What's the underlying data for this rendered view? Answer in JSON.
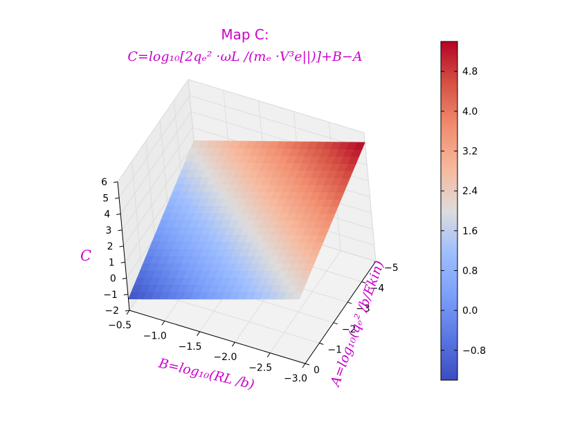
{
  "chart_data": {
    "type": "surface3d",
    "title": "Map C:",
    "subtitle": "C=log₁₀[2qₑ² ·ωL /(mₑ ·V³e||)]+B−A",
    "xlabel": "B=log₁₀(RL /b)",
    "ylabel": "A=log₁₀(qₑ² /b/Ekin)",
    "zlabel": "C",
    "x_range": [
      -0.5,
      -3.0
    ],
    "y_range": [
      0,
      -5
    ],
    "z_range": [
      -2,
      6
    ],
    "x_ticks": [
      "−0.5",
      "−1.0",
      "−1.5",
      "−2.0",
      "−2.5",
      "−3.0"
    ],
    "y_ticks": [
      "0",
      "−1",
      "−2",
      "−3",
      "−4",
      "−5"
    ],
    "z_ticks": [
      "−2",
      "−1",
      "0",
      "1",
      "2",
      "3",
      "4",
      "5",
      "6"
    ],
    "surface_corners": {
      "B_-0.5_A_0": -1.3,
      "B_-0.5_A_-5": 2.2,
      "B_-3.0_A_0": 2.0,
      "B_-3.0_A_-5": 5.4
    },
    "grid": true,
    "colorbar": {
      "colormap": "coolwarm",
      "min": -1.4,
      "max": 5.4,
      "ticks": [
        "−0.8",
        "0.0",
        "0.8",
        "1.6",
        "2.4",
        "3.2",
        "4.0",
        "4.8"
      ],
      "tick_values": [
        -0.8,
        0.0,
        0.8,
        1.6,
        2.4,
        3.2,
        4.0,
        4.8
      ]
    }
  }
}
